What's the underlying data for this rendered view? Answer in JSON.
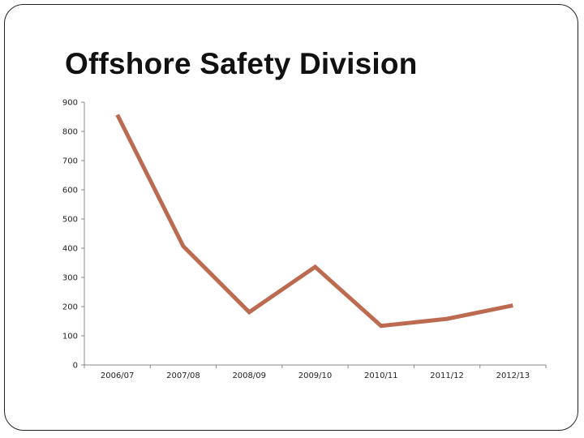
{
  "slide": {
    "title": "Offshore Safety Division"
  },
  "chart_data": {
    "type": "line",
    "title": "",
    "xlabel": "",
    "ylabel": "",
    "categories": [
      "2006/07",
      "2007/08",
      "2008/09",
      "2009/10",
      "2010/11",
      "2011/12",
      "2012/13"
    ],
    "series": [
      {
        "values": [
          857,
          407,
          181,
          336,
          134,
          158,
          204
        ]
      }
    ],
    "ylim": [
      0,
      900
    ],
    "yticks": [
      0,
      100,
      200,
      300,
      400,
      500,
      600,
      700,
      800,
      900
    ],
    "grid": false,
    "legend": "none",
    "colors": {
      "line": "#BC6A50",
      "axis": "#888888"
    }
  }
}
